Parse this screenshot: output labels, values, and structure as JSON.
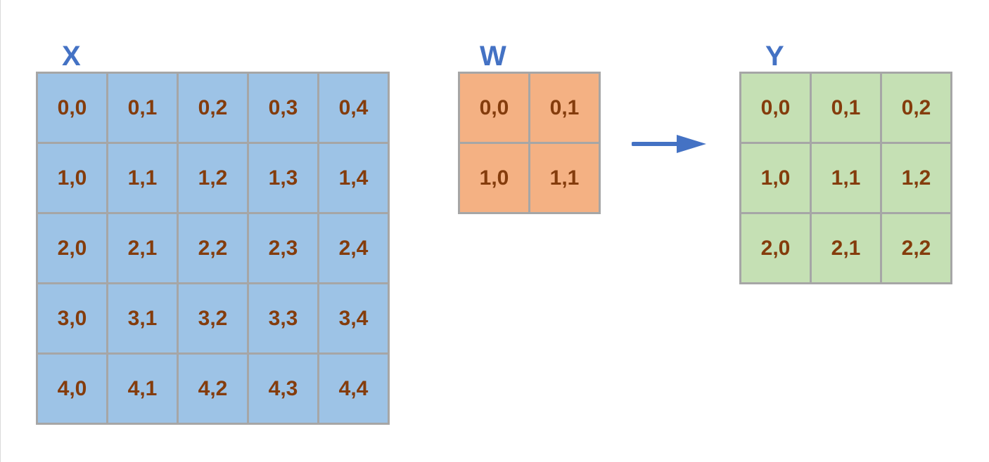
{
  "colors": {
    "label": "#4472c4",
    "cell_text": "#843c0c",
    "grid_border": "#a6a6a6",
    "x_fill": "#9dc3e6",
    "w_fill": "#f4b183",
    "y_fill": "#c5e0b4",
    "arrow": "#4472c4"
  },
  "matrices": {
    "x": {
      "label": "X",
      "cells": [
        [
          "0,0",
          "0,1",
          "0,2",
          "0,3",
          "0,4"
        ],
        [
          "1,0",
          "1,1",
          "1,2",
          "1,3",
          "1,4"
        ],
        [
          "2,0",
          "2,1",
          "2,2",
          "2,3",
          "2,4"
        ],
        [
          "3,0",
          "3,1",
          "3,2",
          "3,3",
          "3,4"
        ],
        [
          "4,0",
          "4,1",
          "4,2",
          "4,3",
          "4,4"
        ]
      ]
    },
    "w": {
      "label": "W",
      "cells": [
        [
          "0,0",
          "0,1"
        ],
        [
          "1,0",
          "1,1"
        ]
      ]
    },
    "y": {
      "label": "Y",
      "cells": [
        [
          "0,0",
          "0,1",
          "0,2"
        ],
        [
          "1,0",
          "1,1",
          "1,2"
        ],
        [
          "2,0",
          "2,1",
          "2,2"
        ]
      ]
    }
  },
  "arrow_icon": "arrow-right-icon"
}
